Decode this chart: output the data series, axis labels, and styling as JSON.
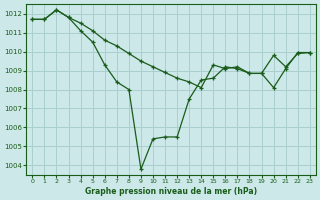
{
  "xlabel": "Graphe pression niveau de la mer (hPa)",
  "bg_color": "#cce8e8",
  "grid_color": "#aacfcf",
  "line_color": "#1a5c1a",
  "ylim": [
    1003.5,
    1012.5
  ],
  "xlim": [
    -0.5,
    23.5
  ],
  "yticks": [
    1004,
    1005,
    1006,
    1007,
    1008,
    1009,
    1010,
    1011,
    1012
  ],
  "xticks": [
    0,
    1,
    2,
    3,
    4,
    5,
    6,
    7,
    8,
    9,
    10,
    11,
    12,
    13,
    14,
    15,
    16,
    17,
    18,
    19,
    20,
    21,
    22,
    23
  ],
  "series1_x": [
    0,
    1,
    2,
    3,
    4,
    5,
    6,
    7,
    8,
    9,
    10,
    11,
    12,
    13,
    14,
    15,
    16,
    17,
    18,
    19,
    20,
    21,
    22,
    23
  ],
  "series1_y": [
    1011.7,
    1011.7,
    1012.2,
    1011.8,
    1011.5,
    1011.1,
    1010.6,
    1010.3,
    1009.9,
    1009.5,
    1009.2,
    1008.9,
    1008.6,
    1008.4,
    1008.1,
    1009.3,
    1009.1,
    1009.2,
    1008.85,
    1008.85,
    1009.8,
    1009.2,
    1009.9,
    1009.95
  ],
  "series2_x": [
    0,
    1,
    2,
    3,
    4,
    5,
    6,
    7,
    8,
    9,
    10,
    11,
    12,
    13,
    14,
    15,
    16,
    17,
    18,
    19,
    20,
    21,
    22,
    23
  ],
  "series2_y": [
    1011.7,
    1011.7,
    1012.2,
    1011.8,
    1011.1,
    1010.5,
    1009.3,
    1008.4,
    1008.0,
    1003.8,
    1005.4,
    1005.5,
    1005.5,
    1007.5,
    1008.5,
    1008.6,
    1009.2,
    1009.1,
    1008.85,
    1008.85,
    1008.1,
    1009.1,
    1009.95,
    1009.95
  ]
}
